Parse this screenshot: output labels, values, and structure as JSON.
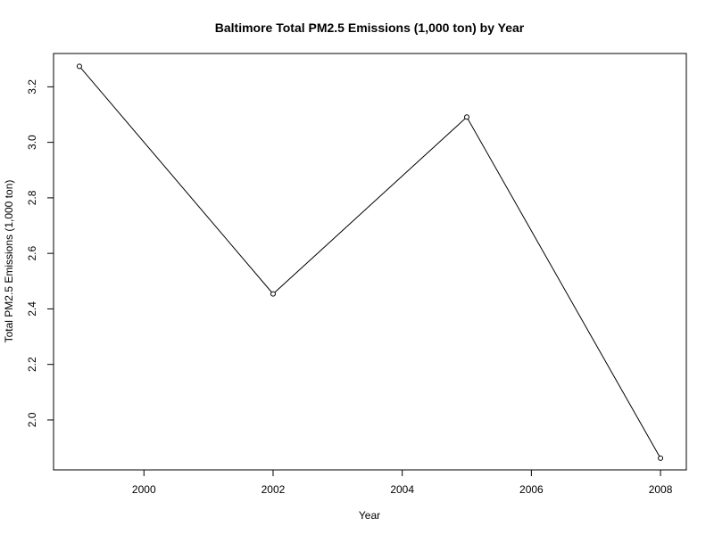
{
  "chart_data": {
    "type": "line",
    "title": "Baltimore Total PM2.5 Emissions (1,000 ton) by Year",
    "xlabel": "Year",
    "ylabel": "Total PM2.5 Emissions (1,000 ton)",
    "x": [
      1999,
      2002,
      2005,
      2008
    ],
    "y": [
      3.274,
      2.454,
      3.091,
      1.862
    ],
    "xlim": [
      1998.6,
      2008.4
    ],
    "ylim": [
      1.82,
      3.32
    ],
    "xticks": [
      2000,
      2002,
      2004,
      2006,
      2008
    ],
    "xtick_labels": [
      "2000",
      "2002",
      "2004",
      "2006",
      "2008"
    ],
    "yticks": [
      2.0,
      2.2,
      2.4,
      2.6,
      2.8,
      3.0,
      3.2
    ],
    "ytick_labels": [
      "2.0",
      "2.2",
      "2.4",
      "2.6",
      "2.8",
      "3.0",
      "3.2"
    ],
    "grid": false,
    "markers": "open-circle",
    "colors": {
      "line": "#000000",
      "background": "#ffffff"
    }
  }
}
